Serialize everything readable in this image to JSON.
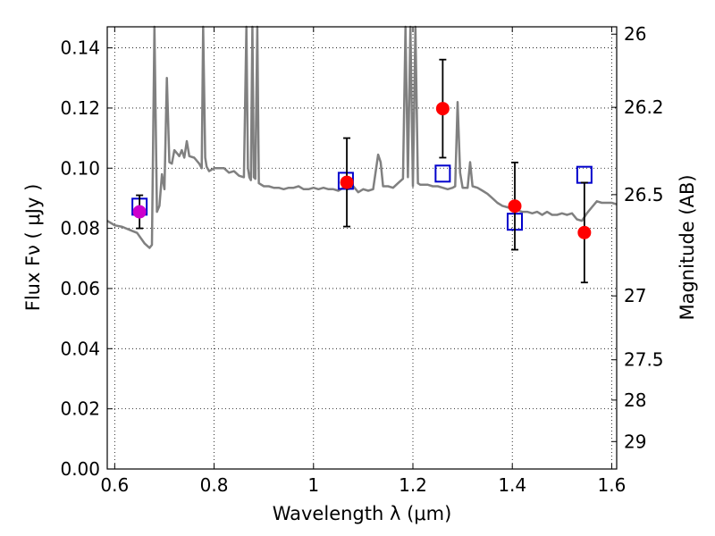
{
  "chart_data": {
    "type": "scatter",
    "title": "",
    "xlabel": "Wavelength  λ (μm)",
    "ylabel": "Flux  Fν  ( μJy )",
    "y2label": "Magnitude (AB)",
    "xlim": [
      0.585,
      1.61
    ],
    "ylim": [
      0.0,
      0.147
    ],
    "grid": true,
    "grid_style": "dotted",
    "legend": "none",
    "x_ticks": [
      {
        "value": 0.6,
        "label": "0.6"
      },
      {
        "value": 0.8,
        "label": "0.8"
      },
      {
        "value": 1.0,
        "label": "1"
      },
      {
        "value": 1.2,
        "label": "1.2"
      },
      {
        "value": 1.4,
        "label": "1.4"
      },
      {
        "value": 1.6,
        "label": "1.6"
      }
    ],
    "y_ticks": [
      {
        "value": 0.0,
        "label": "0.00"
      },
      {
        "value": 0.02,
        "label": "0.02"
      },
      {
        "value": 0.04,
        "label": "0.04"
      },
      {
        "value": 0.06,
        "label": "0.06"
      },
      {
        "value": 0.08,
        "label": "0.08"
      },
      {
        "value": 0.1,
        "label": "0.10"
      },
      {
        "value": 0.12,
        "label": "0.12"
      },
      {
        "value": 0.14,
        "label": "0.14"
      }
    ],
    "mag_ticks": [
      {
        "mag": 26.0,
        "label": "26"
      },
      {
        "mag": 26.2,
        "label": "26.2"
      },
      {
        "mag": 26.5,
        "label": "26.5"
      },
      {
        "mag": 27.0,
        "label": "27"
      },
      {
        "mag": 27.5,
        "label": "27.5"
      },
      {
        "mag": 28.0,
        "label": "28"
      },
      {
        "mag": 29.0,
        "label": "29"
      }
    ],
    "observed_points": {
      "marker": "circle",
      "color": "#ff0000",
      "points": [
        {
          "x": 0.65,
          "y": 0.0855,
          "yerr_low": 0.0055,
          "yerr_high": 0.0055,
          "color": "#cc00cc"
        },
        {
          "x": 1.067,
          "y": 0.0953,
          "yerr_low": 0.0147,
          "yerr_high": 0.0147,
          "color": "#ff0000"
        },
        {
          "x": 1.26,
          "y": 0.1198,
          "yerr_low": 0.0163,
          "yerr_high": 0.0163,
          "color": "#ff0000"
        },
        {
          "x": 1.405,
          "y": 0.0874,
          "yerr_low": 0.0145,
          "yerr_high": 0.0145,
          "color": "#ff0000"
        },
        {
          "x": 1.545,
          "y": 0.0786,
          "yerr_low": 0.0166,
          "yerr_high": 0.0166,
          "color": "#ff0000"
        }
      ]
    },
    "model_points": {
      "marker": "open-square",
      "color": "#0000cc",
      "points": [
        {
          "x": 0.65,
          "y": 0.0872
        },
        {
          "x": 1.065,
          "y": 0.0958
        },
        {
          "x": 1.26,
          "y": 0.0982
        },
        {
          "x": 1.405,
          "y": 0.0822
        },
        {
          "x": 1.545,
          "y": 0.0978
        }
      ]
    },
    "spectrum": {
      "color": "#808080",
      "x": [
        0.585,
        0.6,
        0.615,
        0.63,
        0.645,
        0.66,
        0.67,
        0.675,
        0.68,
        0.685,
        0.69,
        0.695,
        0.7,
        0.705,
        0.71,
        0.715,
        0.72,
        0.725,
        0.73,
        0.735,
        0.74,
        0.745,
        0.75,
        0.76,
        0.77,
        0.775,
        0.778,
        0.782,
        0.785,
        0.79,
        0.8,
        0.81,
        0.82,
        0.83,
        0.84,
        0.85,
        0.86,
        0.865,
        0.868,
        0.871,
        0.874,
        0.877,
        0.88,
        0.883,
        0.887,
        0.89,
        0.9,
        0.91,
        0.92,
        0.93,
        0.94,
        0.95,
        0.96,
        0.97,
        0.98,
        0.99,
        1.0,
        1.01,
        1.02,
        1.03,
        1.04,
        1.05,
        1.06,
        1.07,
        1.08,
        1.09,
        1.1,
        1.11,
        1.12,
        1.13,
        1.135,
        1.14,
        1.15,
        1.16,
        1.17,
        1.18,
        1.185,
        1.19,
        1.195,
        1.2,
        1.205,
        1.21,
        1.215,
        1.22,
        1.23,
        1.24,
        1.25,
        1.26,
        1.27,
        1.28,
        1.285,
        1.29,
        1.295,
        1.3,
        1.31,
        1.315,
        1.32,
        1.33,
        1.34,
        1.35,
        1.36,
        1.37,
        1.38,
        1.39,
        1.4,
        1.41,
        1.42,
        1.43,
        1.44,
        1.45,
        1.46,
        1.47,
        1.48,
        1.49,
        1.5,
        1.51,
        1.52,
        1.53,
        1.54,
        1.55,
        1.56,
        1.57,
        1.58,
        1.59,
        1.6,
        1.61
      ],
      "y": [
        0.0825,
        0.081,
        0.0805,
        0.0795,
        0.0785,
        0.075,
        0.0735,
        0.0745,
        0.147,
        0.0855,
        0.0875,
        0.098,
        0.093,
        0.13,
        0.102,
        0.1015,
        0.106,
        0.105,
        0.104,
        0.106,
        0.1035,
        0.109,
        0.104,
        0.1035,
        0.1015,
        0.1,
        0.147,
        0.1035,
        0.1005,
        0.099,
        0.1,
        0.1,
        0.1,
        0.0985,
        0.099,
        0.0975,
        0.097,
        0.147,
        0.1,
        0.097,
        0.096,
        0.147,
        0.097,
        0.0965,
        0.147,
        0.095,
        0.094,
        0.094,
        0.0935,
        0.0935,
        0.093,
        0.0935,
        0.0935,
        0.094,
        0.093,
        0.093,
        0.0935,
        0.093,
        0.0935,
        0.093,
        0.093,
        0.0925,
        0.0935,
        0.093,
        0.094,
        0.092,
        0.093,
        0.0925,
        0.093,
        0.1045,
        0.102,
        0.094,
        0.094,
        0.0935,
        0.095,
        0.0965,
        0.147,
        0.097,
        0.147,
        0.094,
        0.147,
        0.095,
        0.0945,
        0.0945,
        0.0945,
        0.094,
        0.094,
        0.0935,
        0.093,
        0.0935,
        0.094,
        0.122,
        0.0985,
        0.0935,
        0.0935,
        0.102,
        0.094,
        0.0935,
        0.0925,
        0.0915,
        0.09,
        0.0885,
        0.0875,
        0.087,
        0.0865,
        0.086,
        0.0855,
        0.0855,
        0.085,
        0.0855,
        0.0845,
        0.0855,
        0.0845,
        0.0845,
        0.085,
        0.0845,
        0.085,
        0.083,
        0.0825,
        0.085,
        0.087,
        0.089,
        0.0885,
        0.0885,
        0.0885,
        0.088
      ]
    }
  }
}
